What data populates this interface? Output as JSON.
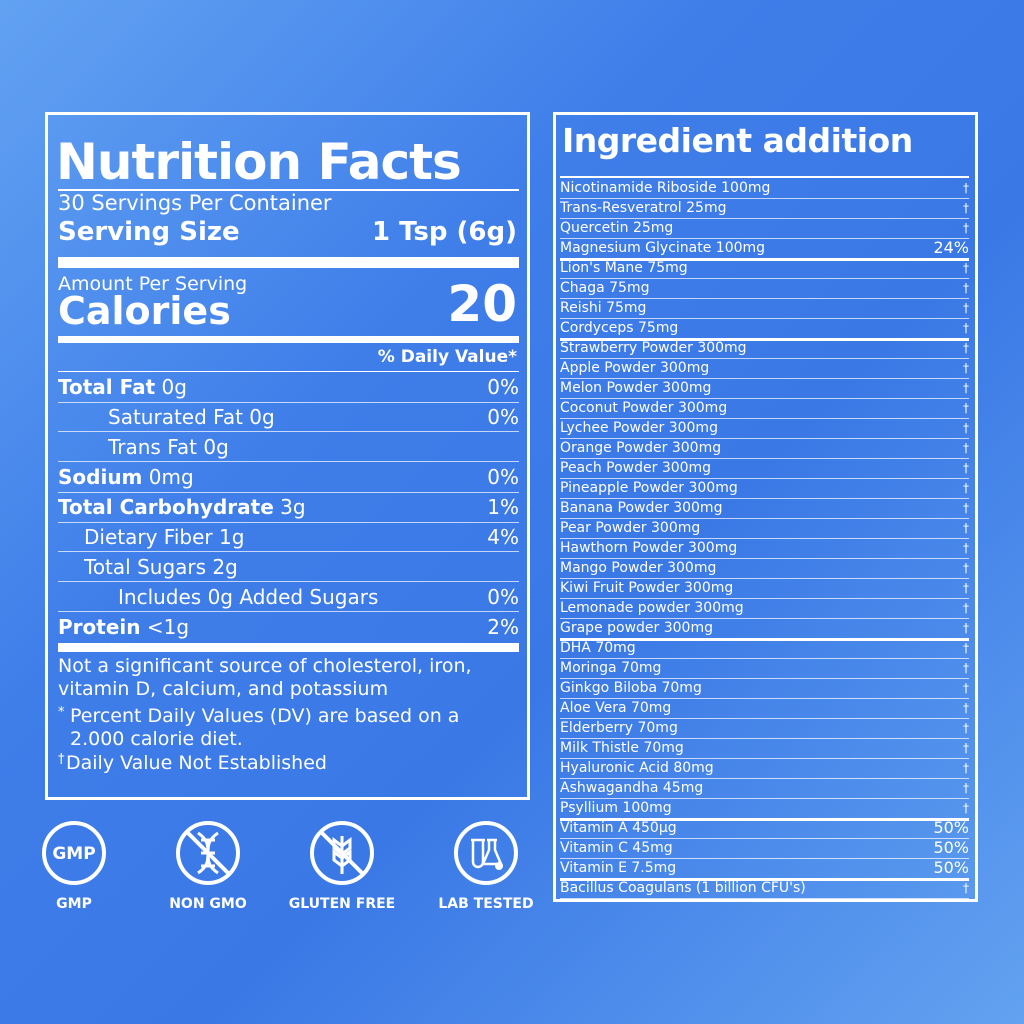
{
  "nutrition": {
    "title": "Nutrition Facts",
    "servings": "30 Servings Per Container",
    "serving_size_label": "Serving Size",
    "serving_size_value": "1 Tsp (6g)",
    "amount_label": "Amount Per Serving",
    "calories_label": "Calories",
    "calories_value": "20",
    "dv_header": "% Daily Value*",
    "rows": [
      {
        "name": "Total Fat",
        "amount": "0g",
        "dv": "0%"
      },
      {
        "name": "Saturated Fat",
        "amount": "0g",
        "dv": "0%"
      },
      {
        "name": "Trans Fat",
        "amount": "0g"
      },
      {
        "name": "Sodium",
        "amount": "0mg",
        "dv": "0%"
      },
      {
        "name": "Total Carbohydrate",
        "amount": "3g",
        "dv": "1%"
      },
      {
        "name": "Dietary Fiber",
        "amount": "1g",
        "dv": "4%"
      },
      {
        "name": "Total Sugars",
        "amount": "2g"
      },
      {
        "name": "Includes 0g Added Sugars",
        "dv": "0%"
      },
      {
        "name": "Protein",
        "amount": "<1g",
        "dv": "2%"
      }
    ],
    "footnotes": {
      "not_significant": "Not a significant source of cholesterol, iron, vitamin D, calcium, and potassium",
      "dv_marker": "*",
      "dv_note": "Percent Daily Values (DV) are based on a 2.000 calorie diet.",
      "dagger_marker": "†",
      "dagger_note": "Daily Value Not Established"
    }
  },
  "ingredients": {
    "title": "Ingredient addition",
    "groups": [
      [
        {
          "name": "Nicotinamide Riboside 100mg",
          "dv": "†"
        },
        {
          "name": "Trans-Resveratrol 25mg",
          "dv": "†"
        },
        {
          "name": "Quercetin 25mg",
          "dv": "†"
        },
        {
          "name": "Magnesium Glycinate 100mg",
          "dv": "24%"
        }
      ],
      [
        {
          "name": "Lion's Mane 75mg",
          "dv": "†"
        },
        {
          "name": "Chaga 75mg",
          "dv": "†"
        },
        {
          "name": "Reishi 75mg",
          "dv": "†"
        },
        {
          "name": "Cordyceps 75mg",
          "dv": "†"
        }
      ],
      [
        {
          "name": "Strawberry Powder 300mg",
          "dv": "†"
        },
        {
          "name": "Apple Powder 300mg",
          "dv": "†"
        },
        {
          "name": "Melon Powder 300mg",
          "dv": "†"
        },
        {
          "name": "Coconut Powder 300mg",
          "dv": "†"
        },
        {
          "name": "Lychee Powder 300mg",
          "dv": "†"
        },
        {
          "name": "Orange Powder 300mg",
          "dv": "†"
        },
        {
          "name": "Peach Powder 300mg",
          "dv": "†"
        },
        {
          "name": "Pineapple Powder 300mg",
          "dv": "†"
        },
        {
          "name": "Banana Powder 300mg",
          "dv": "†"
        },
        {
          "name": "Pear Powder 300mg",
          "dv": "†"
        },
        {
          "name": "Hawthorn Powder 300mg",
          "dv": "†"
        },
        {
          "name": "Mango Powder 300mg",
          "dv": "†"
        },
        {
          "name": "Kiwi Fruit Powder 300mg",
          "dv": "†"
        },
        {
          "name": "Lemonade powder 300mg",
          "dv": "†"
        },
        {
          "name": "Grape powder 300mg",
          "dv": "†"
        }
      ],
      [
        {
          "name": "DHA 70mg",
          "dv": "†"
        },
        {
          "name": "Moringa 70mg",
          "dv": "†"
        },
        {
          "name": "Ginkgo Biloba 70mg",
          "dv": "†"
        },
        {
          "name": "Aloe Vera 70mg",
          "dv": "†"
        },
        {
          "name": "Elderberry 70mg",
          "dv": "†"
        },
        {
          "name": "Milk Thistle 70mg",
          "dv": "†"
        },
        {
          "name": "Hyaluronic Acid 80mg",
          "dv": "†"
        },
        {
          "name": "Ashwagandha 45mg",
          "dv": "†"
        },
        {
          "name": "Psyllium 100mg",
          "dv": "†"
        }
      ],
      [
        {
          "name": "Vitamin A 450μg",
          "dv": "50%"
        },
        {
          "name": "Vitamin C 45mg",
          "dv": "50%"
        },
        {
          "name": "Vitamin E 7.5mg",
          "dv": "50%"
        }
      ],
      [
        {
          "name": "Bacillus Coagulans (1 billion CFU's)",
          "dv": "†"
        }
      ]
    ]
  },
  "badges": [
    {
      "icon_text": "GMP",
      "label": "GMP"
    },
    {
      "label": "NON GMO"
    },
    {
      "label": "GLUTEN FREE"
    },
    {
      "label": "LAB TESTED"
    }
  ]
}
